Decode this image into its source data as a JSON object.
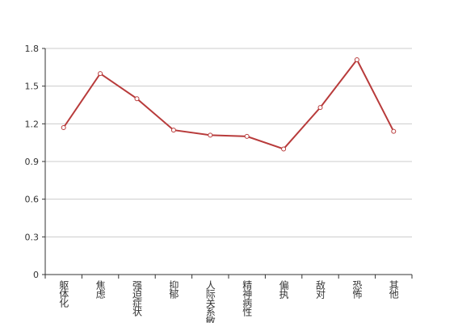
{
  "chart_data": {
    "type": "line",
    "categories": [
      "躯体化",
      "焦虑",
      "强迫症状",
      "抑郁",
      "人际关系敏感",
      "精神病性",
      "偏执",
      "敌对",
      "恐怖",
      "其他"
    ],
    "series": [
      {
        "name": "",
        "color": "#b83b3b",
        "values": [
          1.17,
          1.6,
          1.4,
          1.15,
          1.11,
          1.1,
          1.0,
          1.33,
          1.71,
          1.14
        ]
      }
    ],
    "ylim": [
      0,
      1.8
    ],
    "yticks": [
      0,
      {
        "value": 0.3,
        "label": "0.3"
      },
      {
        "value": 0.6,
        "label": "0.6"
      },
      {
        "value": 0.9,
        "label": "0.9"
      },
      {
        "value": 1.2,
        "label": "1.2"
      },
      {
        "value": 1.5,
        "label": "1.5"
      },
      {
        "value": 1.8,
        "label": "1.8"
      }
    ],
    "grid": true
  }
}
